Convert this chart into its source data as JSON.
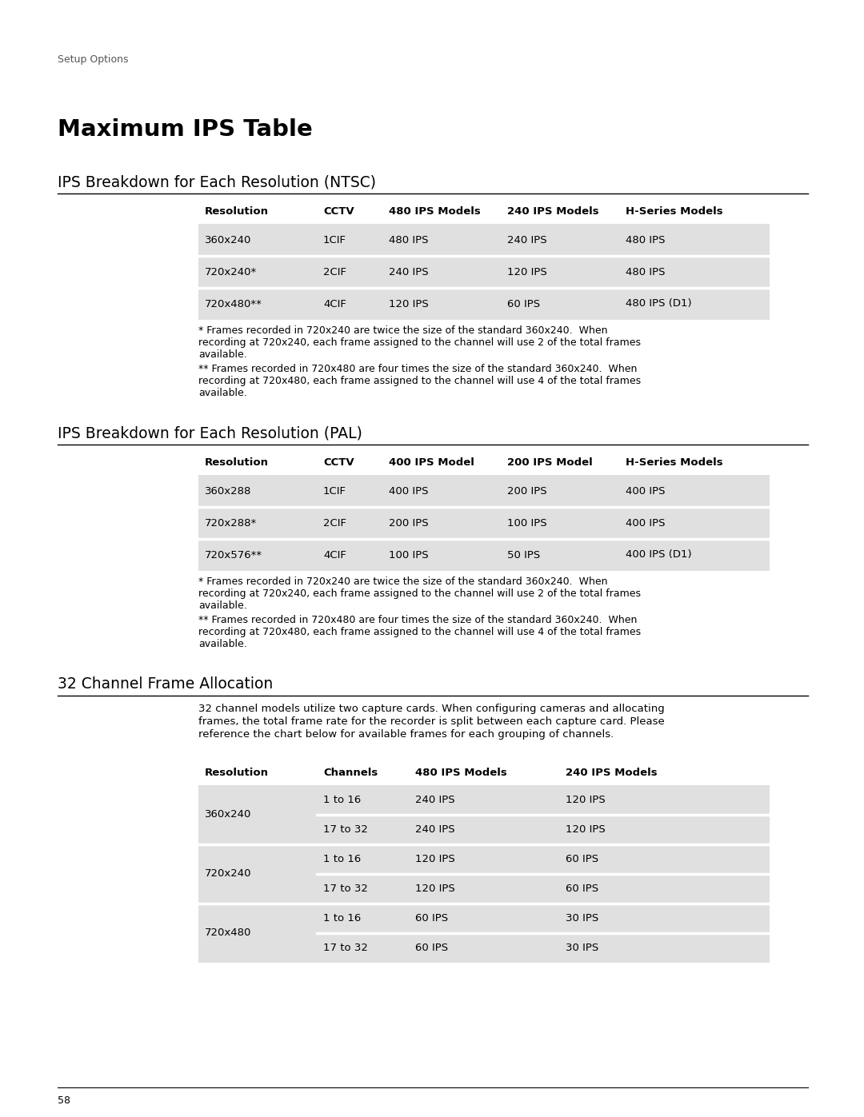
{
  "page_header": "Setup Options",
  "main_title": "Maximum IPS Table",
  "section1_title": "IPS Breakdown for Each Resolution (NTSC)",
  "section1_headers": [
    "Resolution",
    "CCTV",
    "480 IPS Models",
    "240 IPS Models",
    "H-Series Models"
  ],
  "section1_rows": [
    [
      "360x240",
      "1CIF",
      "480 IPS",
      "240 IPS",
      "480 IPS"
    ],
    [
      "720x240*",
      "2CIF",
      "240 IPS",
      "120 IPS",
      "480 IPS"
    ],
    [
      "720x480**",
      "4CIF",
      "120 IPS",
      "60 IPS",
      "480 IPS (D1)"
    ]
  ],
  "section1_note1": "* Frames recorded in 720x240 are twice the size of the standard 360x240.  When\nrecording at 720x240, each frame assigned to the channel will use 2 of the total frames\navailable.",
  "section1_note2": "** Frames recorded in 720x480 are four times the size of the standard 360x240.  When\nrecording at 720x480, each frame assigned to the channel will use 4 of the total frames\navailable.",
  "section2_title": "IPS Breakdown for Each Resolution (PAL)",
  "section2_headers": [
    "Resolution",
    "CCTV",
    "400 IPS Model",
    "200 IPS Model",
    "H-Series Models"
  ],
  "section2_rows": [
    [
      "360x288",
      "1CIF",
      "400 IPS",
      "200 IPS",
      "400 IPS"
    ],
    [
      "720x288*",
      "2CIF",
      "200 IPS",
      "100 IPS",
      "400 IPS"
    ],
    [
      "720x576**",
      "4CIF",
      "100 IPS",
      "50 IPS",
      "400 IPS (D1)"
    ]
  ],
  "section2_note1": "* Frames recorded in 720x240 are twice the size of the standard 360x240.  When\nrecording at 720x240, each frame assigned to the channel will use 2 of the total frames\navailable.",
  "section2_note2": "** Frames recorded in 720x480 are four times the size of the standard 360x240.  When\nrecording at 720x480, each frame assigned to the channel will use 4 of the total frames\navailable.",
  "section3_title": "32 Channel Frame Allocation",
  "section3_intro": "32 channel models utilize two capture cards. When configuring cameras and allocating\nframes, the total frame rate for the recorder is split between each capture card. Please\nreference the chart below for available frames for each grouping of channels.",
  "section3_headers": [
    "Resolution",
    "Channels",
    "480 IPS Models",
    "240 IPS Models"
  ],
  "section3_rows": [
    [
      "360x240",
      "1 to 16",
      "240 IPS",
      "120 IPS"
    ],
    [
      "360x240",
      "17 to 32",
      "240 IPS",
      "120 IPS"
    ],
    [
      "720x240",
      "1 to 16",
      "120 IPS",
      "60 IPS"
    ],
    [
      "720x240",
      "17 to 32",
      "120 IPS",
      "60 IPS"
    ],
    [
      "720x480",
      "1 to 16",
      "60 IPS",
      "30 IPS"
    ],
    [
      "720x480",
      "17 to 32",
      "60 IPS",
      "30 IPS"
    ]
  ],
  "page_number": "58",
  "bg_color": "#ffffff",
  "table_bg_color": "#e0e0e0",
  "text_color": "#000000"
}
